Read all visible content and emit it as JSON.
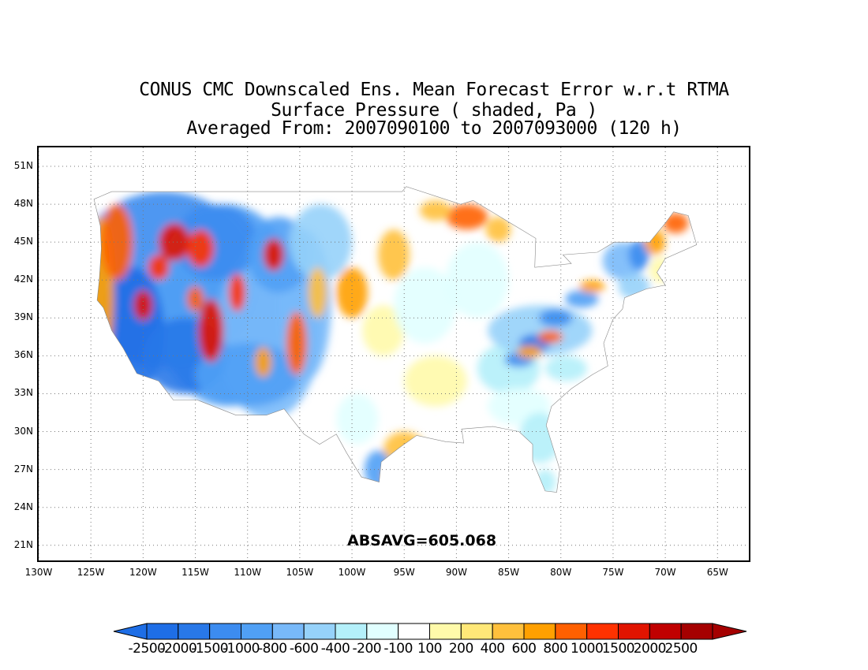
{
  "title": {
    "line1": "CONUS CMC Downscaled Ens. Mean Forecast Error w.r.t RTMA",
    "line2": "Surface Pressure ( shaded, Pa )",
    "line3": "Averaged From: 2007090100 to 2007093000 (120 h)"
  },
  "map": {
    "lat_labels": [
      "51N",
      "48N",
      "45N",
      "42N",
      "39N",
      "36N",
      "33N",
      "30N",
      "27N",
      "24N",
      "21N"
    ],
    "lon_labels": [
      "130W",
      "125W",
      "120W",
      "115W",
      "110W",
      "105W",
      "100W",
      "95W",
      "90W",
      "85W",
      "80W",
      "75W",
      "70W",
      "65W"
    ],
    "lat_values": [
      51,
      48,
      45,
      42,
      39,
      36,
      33,
      30,
      27,
      24,
      21
    ],
    "lon_values": [
      -130,
      -125,
      -120,
      -115,
      -110,
      -105,
      -100,
      -95,
      -90,
      -85,
      -80,
      -75,
      -70,
      -65
    ],
    "lat_range": [
      19.8,
      52.5
    ],
    "lon_range": [
      -130,
      -62
    ],
    "absavg": "ABSAVG=605.068",
    "gridlines": true
  },
  "colorbar": {
    "levels": [
      "-2500",
      "-2000",
      "-1500",
      "-1000",
      "-800",
      "-600",
      "-400",
      "-200",
      "-100",
      "100",
      "200",
      "400",
      "600",
      "800",
      "1000",
      "1500",
      "2000",
      "2500"
    ],
    "colors": [
      "#1e6ee6",
      "#2878e8",
      "#3c8cf0",
      "#50a0f5",
      "#78b9f9",
      "#96d2fa",
      "#b4f0fa",
      "#e1ffff",
      "#ffffff",
      "#fffaaa",
      "#ffe878",
      "#ffc03c",
      "#ffa000",
      "#ff6000",
      "#ff3200",
      "#e11400",
      "#c00000",
      "#a50000"
    ],
    "under_color": "#1e6ee6",
    "over_color": "#a50000"
  }
}
